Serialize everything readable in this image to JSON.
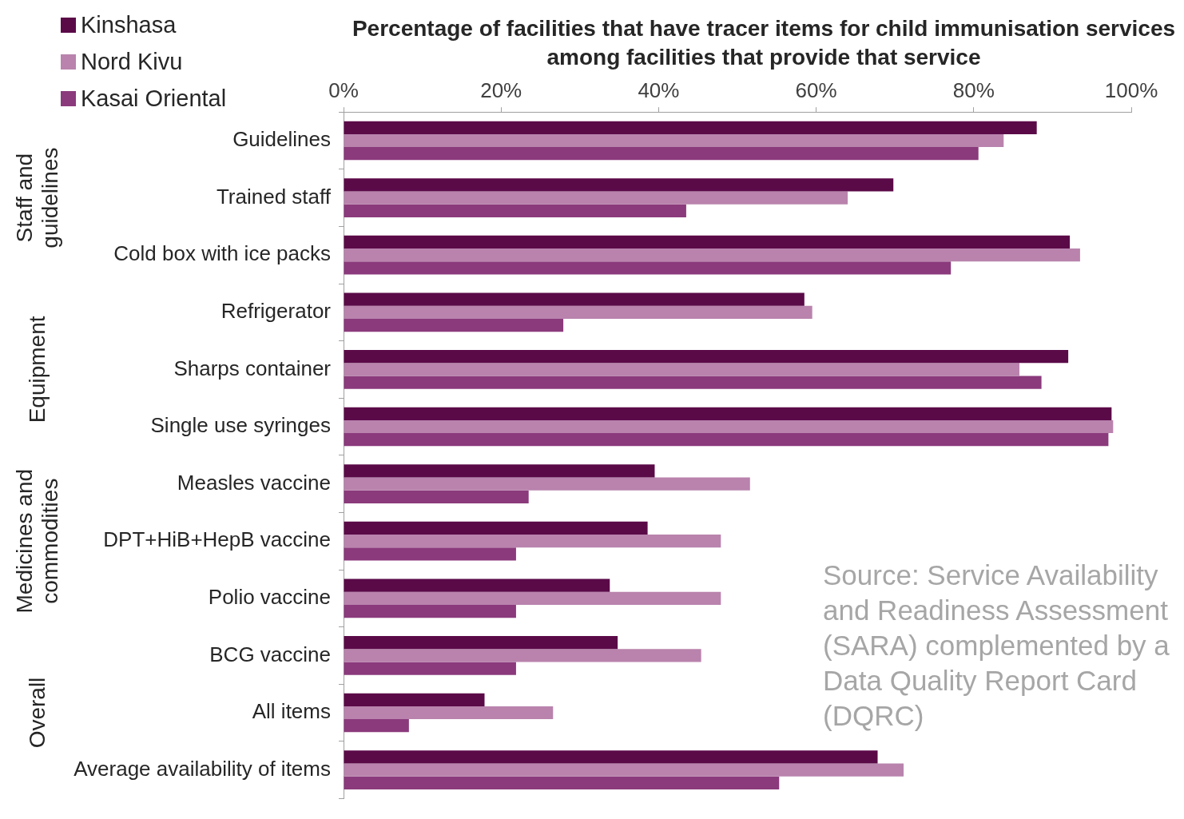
{
  "chart_data": {
    "type": "bar",
    "orientation": "horizontal",
    "title": "Percentage of facilities that have tracer items for child immunisation services among facilities that provide that service",
    "categories": [
      "Guidelines",
      "Trained staff",
      "Cold box with ice packs",
      "Refrigerator",
      "Sharps container",
      "Single use syringes",
      "Measles vaccine",
      "DPT+HiB+HepB vaccine",
      "Polio vaccine",
      "BCG vaccine",
      "All items",
      "Average availability of items"
    ],
    "series": [
      {
        "name": "Kinshasa",
        "color": "#5b0a48",
        "values": [
          88.0,
          69.8,
          92.2,
          58.5,
          92.0,
          97.5,
          39.5,
          38.6,
          33.8,
          34.8,
          17.9,
          67.8
        ]
      },
      {
        "name": "Nord Kivu",
        "color": "#b983ad",
        "values": [
          83.8,
          64.0,
          93.5,
          59.5,
          85.8,
          97.7,
          51.6,
          47.9,
          47.9,
          45.4,
          26.6,
          71.1
        ]
      },
      {
        "name": "Kasai Oriental",
        "color": "#8b3a7c",
        "values": [
          80.6,
          43.5,
          77.1,
          27.9,
          88.6,
          97.1,
          23.5,
          21.9,
          21.9,
          21.9,
          8.3,
          55.3
        ]
      }
    ],
    "xlim": [
      0,
      100
    ],
    "xticks": [
      {
        "value": 0,
        "label": "0%"
      },
      {
        "value": 20,
        "label": "20%"
      },
      {
        "value": 40,
        "label": "40%"
      },
      {
        "value": 60,
        "label": "60%"
      },
      {
        "value": 80,
        "label": "80%"
      },
      {
        "value": 100,
        "label": "100%"
      }
    ],
    "grid": false,
    "legend": "top left",
    "annotations": [
      "Staff and guidelines",
      "Equipment",
      "Medicines and commodities",
      "Overall",
      "Source: Service Availability and Readiness Assessment (SARA) complemented by a Data Quality Report Card (DQRC)"
    ]
  }
}
